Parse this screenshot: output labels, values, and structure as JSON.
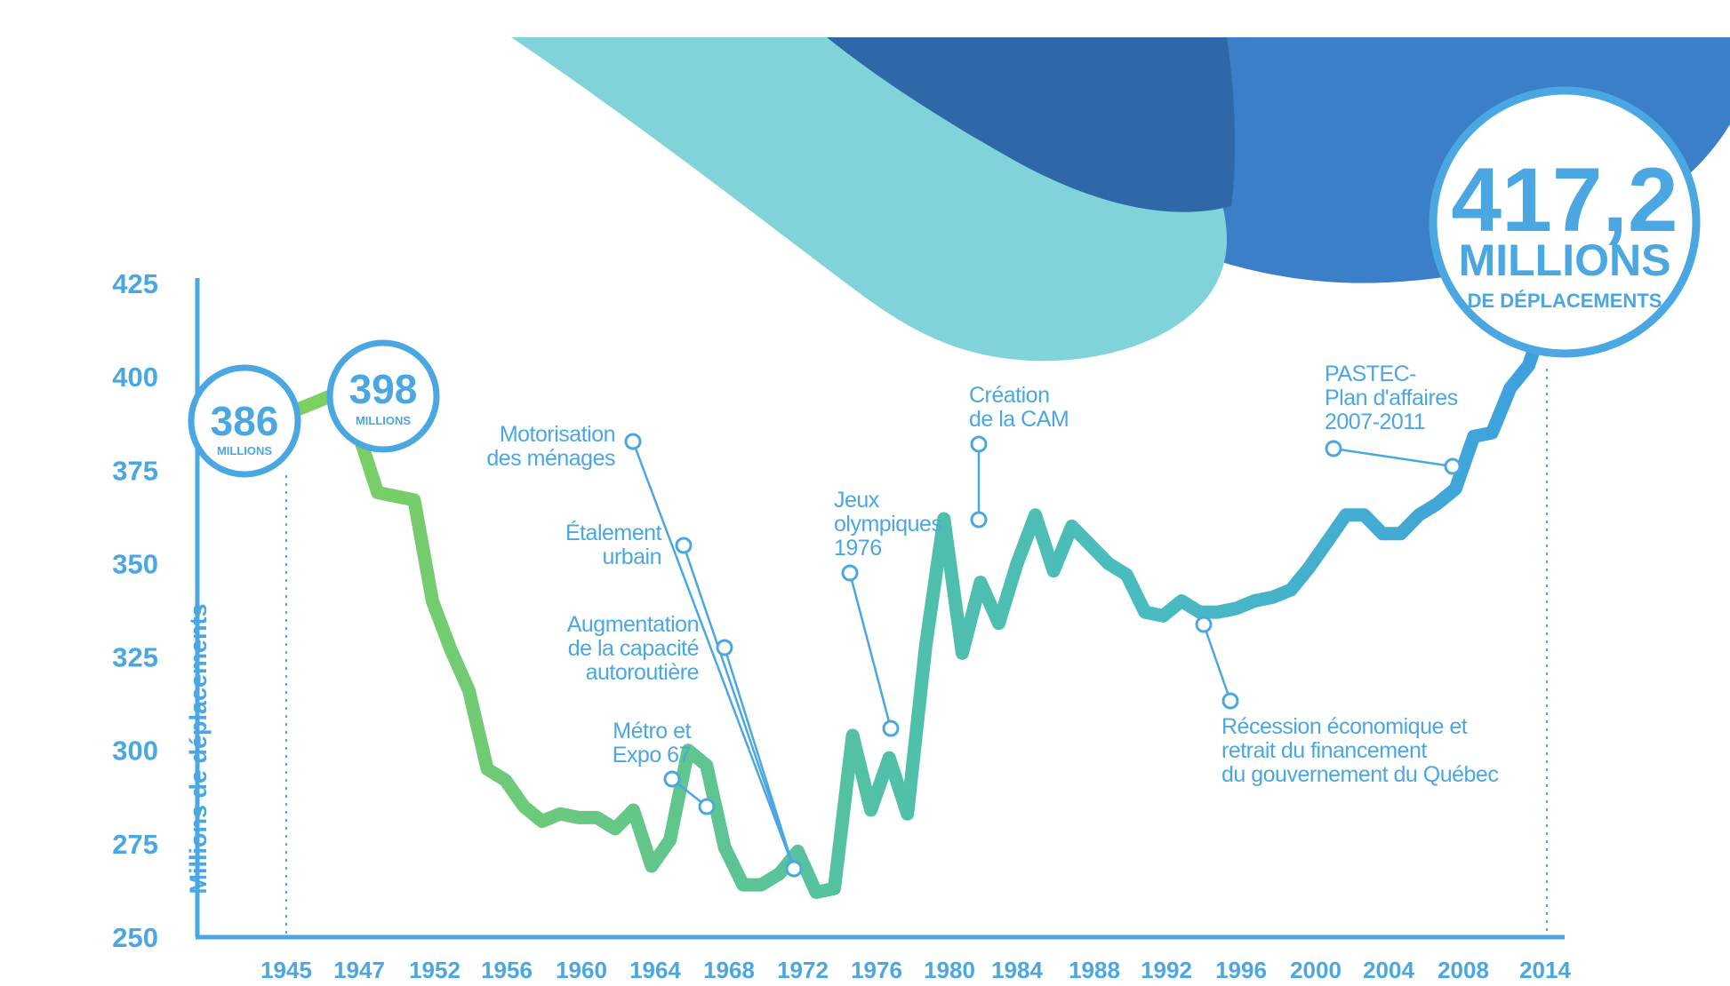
{
  "chart_data": {
    "type": "line",
    "ylabel": "Millions de déplacements",
    "xlabel": "",
    "ylim": [
      250,
      425
    ],
    "y_ticks": [
      425,
      400,
      375,
      350,
      325,
      300,
      275,
      250
    ],
    "x_tick_labels": [
      "1945",
      "1947",
      "1952",
      "1956",
      "1960",
      "1964",
      "1968",
      "1972",
      "1976",
      "1980",
      "1984",
      "1988",
      "1992",
      "1996",
      "2000",
      "2004",
      "2008",
      "2014"
    ],
    "series": [
      {
        "name": "",
        "x": [
          1945,
          1946,
          1947,
          1948,
          1949,
          1950,
          1951,
          1952,
          1953,
          1954,
          1955,
          1956,
          1957,
          1958,
          1959,
          1960,
          1961,
          1962,
          1963,
          1964,
          1965,
          1966,
          1967,
          1968,
          1969,
          1970,
          1971,
          1972,
          1973,
          1974,
          1975,
          1976,
          1977,
          1978,
          1979,
          1980,
          1981,
          1982,
          1983,
          1984,
          1985,
          1986,
          1987,
          1988,
          1989,
          1990,
          1991,
          1992,
          1993,
          1994,
          1995,
          1996,
          1997,
          1998,
          1999,
          2000,
          2001,
          2002,
          2003,
          2004,
          2005,
          2006,
          2007,
          2008,
          2009,
          2010,
          2011,
          2012,
          2013,
          2014
        ],
        "values": [
          390,
          392,
          394,
          396,
          384,
          369,
          368,
          367,
          340,
          327,
          316,
          295,
          292,
          285,
          281,
          283,
          282,
          282,
          279,
          284,
          269,
          276,
          300,
          296,
          274,
          264,
          264,
          267,
          273,
          262,
          263,
          304,
          284,
          298,
          283,
          328,
          362,
          326,
          345,
          334,
          350,
          363,
          348,
          360,
          355,
          350,
          347,
          337,
          336,
          340,
          337,
          337,
          338,
          340,
          341,
          343,
          349,
          356,
          363,
          363,
          358,
          358,
          363,
          366,
          370,
          384,
          385,
          397,
          403,
          417.2
        ]
      }
    ],
    "grid": false,
    "legend": "none",
    "annotations": [
      {
        "text": [
          "Motorisation",
          "des ménages"
        ],
        "year": 1971
      },
      {
        "text": [
          "Étalement",
          "urbain"
        ],
        "year": 1971
      },
      {
        "text": [
          "Augmentation",
          "de la capacité",
          "autoroutière"
        ],
        "year": 1971
      },
      {
        "text": [
          "Métro et",
          "Expo 67"
        ],
        "year": 1967
      },
      {
        "text": [
          "Jeux",
          "olympiques",
          "1976"
        ],
        "year": 1977
      },
      {
        "text": [
          "Création",
          "de la CAM"
        ],
        "year": 1981
      },
      {
        "text": [
          "Récession économique et",
          "retrait du financement",
          "du gouvernement du Québec"
        ],
        "year": 1993
      },
      {
        "text": [
          "PASTEC-",
          "Plan d'affaires",
          "2007-2011"
        ],
        "year": 2008
      }
    ],
    "bubbles": [
      {
        "value": "386",
        "unit": "MILLIONS",
        "sub": ""
      },
      {
        "value": "398",
        "unit": "MILLIONS",
        "sub": ""
      },
      {
        "value": "417,2",
        "unit": "MILLIONS",
        "sub": "DE DÉPLACEMENTS"
      }
    ],
    "colors": {
      "axis": "#4aa7e2",
      "line_start": "#7fd05c",
      "line_end": "#3d9fe0",
      "wave_light": "#7fd3d9",
      "wave_dark": "#2f68a8",
      "wave_mid": "#3b7fc8"
    }
  }
}
